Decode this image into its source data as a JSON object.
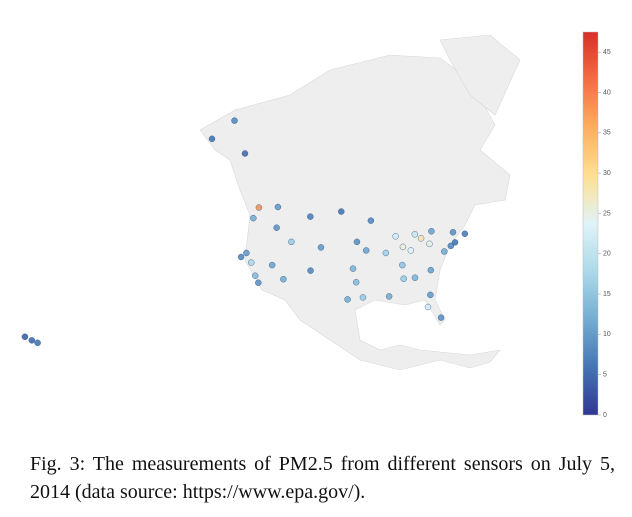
{
  "map": {
    "colorscale": [
      "#313695",
      "#4575b4",
      "#74add1",
      "#abd9e9",
      "#e0f3f8",
      "#fee090",
      "#fdae61",
      "#f46d43",
      "#d73027"
    ],
    "colorbar": {
      "lim": [
        0,
        47.5
      ],
      "ticks": [
        0,
        5,
        10,
        15,
        20,
        25,
        30,
        35,
        40,
        45
      ]
    },
    "sensors": [
      {
        "lon": -149.9,
        "lat": 61.2,
        "value": 6
      },
      {
        "lon": -147.7,
        "lat": 64.8,
        "value": 8
      },
      {
        "lon": -134.4,
        "lat": 58.3,
        "value": 5
      },
      {
        "lon": -157.8,
        "lat": 21.3,
        "value": 5
      },
      {
        "lon": -156.5,
        "lat": 20.8,
        "value": 6
      },
      {
        "lon": -159.4,
        "lat": 22.0,
        "value": 4
      },
      {
        "lon": -122.3,
        "lat": 47.6,
        "value": 38
      },
      {
        "lon": -122.7,
        "lat": 45.5,
        "value": 12
      },
      {
        "lon": -117.4,
        "lat": 47.7,
        "value": 10
      },
      {
        "lon": -116.2,
        "lat": 43.6,
        "value": 9
      },
      {
        "lon": -122.4,
        "lat": 37.8,
        "value": 8
      },
      {
        "lon": -121.5,
        "lat": 38.6,
        "value": 10
      },
      {
        "lon": -119.8,
        "lat": 36.7,
        "value": 18
      },
      {
        "lon": -118.2,
        "lat": 34.1,
        "value": 14
      },
      {
        "lon": -117.2,
        "lat": 32.7,
        "value": 9
      },
      {
        "lon": -115.1,
        "lat": 36.2,
        "value": 11
      },
      {
        "lon": -112.1,
        "lat": 33.4,
        "value": 12
      },
      {
        "lon": -111.9,
        "lat": 40.8,
        "value": 16
      },
      {
        "lon": -108.5,
        "lat": 45.8,
        "value": 7
      },
      {
        "lon": -104.9,
        "lat": 39.7,
        "value": 10
      },
      {
        "lon": -106.6,
        "lat": 35.1,
        "value": 8
      },
      {
        "lon": -100.8,
        "lat": 46.8,
        "value": 6
      },
      {
        "lon": -96.7,
        "lat": 40.8,
        "value": 9
      },
      {
        "lon": -97.5,
        "lat": 35.5,
        "value": 13
      },
      {
        "lon": -96.8,
        "lat": 32.8,
        "value": 14
      },
      {
        "lon": -95.4,
        "lat": 29.8,
        "value": 16
      },
      {
        "lon": -98.5,
        "lat": 29.4,
        "value": 12
      },
      {
        "lon": -93.3,
        "lat": 45.0,
        "value": 8
      },
      {
        "lon": -94.6,
        "lat": 39.1,
        "value": 11
      },
      {
        "lon": -90.2,
        "lat": 38.6,
        "value": 17
      },
      {
        "lon": -87.6,
        "lat": 41.9,
        "value": 22
      },
      {
        "lon": -86.2,
        "lat": 39.8,
        "value": 26
      },
      {
        "lon": -84.5,
        "lat": 39.1,
        "value": 24
      },
      {
        "lon": -83.0,
        "lat": 42.3,
        "value": 21
      },
      {
        "lon": -81.7,
        "lat": 41.5,
        "value": 28
      },
      {
        "lon": -80.0,
        "lat": 40.4,
        "value": 25
      },
      {
        "lon": -86.8,
        "lat": 36.2,
        "value": 15
      },
      {
        "lon": -84.4,
        "lat": 33.7,
        "value": 13
      },
      {
        "lon": -86.8,
        "lat": 33.5,
        "value": 16
      },
      {
        "lon": -90.1,
        "lat": 30.0,
        "value": 12
      },
      {
        "lon": -81.7,
        "lat": 30.3,
        "value": 10
      },
      {
        "lon": -82.5,
        "lat": 27.9,
        "value": 22
      },
      {
        "lon": -80.2,
        "lat": 25.8,
        "value": 9
      },
      {
        "lon": -80.8,
        "lat": 35.2,
        "value": 11
      },
      {
        "lon": -77.0,
        "lat": 38.9,
        "value": 12
      },
      {
        "lon": -75.2,
        "lat": 40.0,
        "value": 8
      },
      {
        "lon": -74.0,
        "lat": 40.7,
        "value": 6
      },
      {
        "lon": -71.1,
        "lat": 42.4,
        "value": 7
      },
      {
        "lon": -73.8,
        "lat": 42.7,
        "value": 9
      },
      {
        "lon": -78.9,
        "lat": 42.9,
        "value": 11
      }
    ],
    "caption": "Fig. 3: The measurements of PM2.5 from different sensors on July 5, 2014 (data source: https://www.epa.gov/)."
  }
}
